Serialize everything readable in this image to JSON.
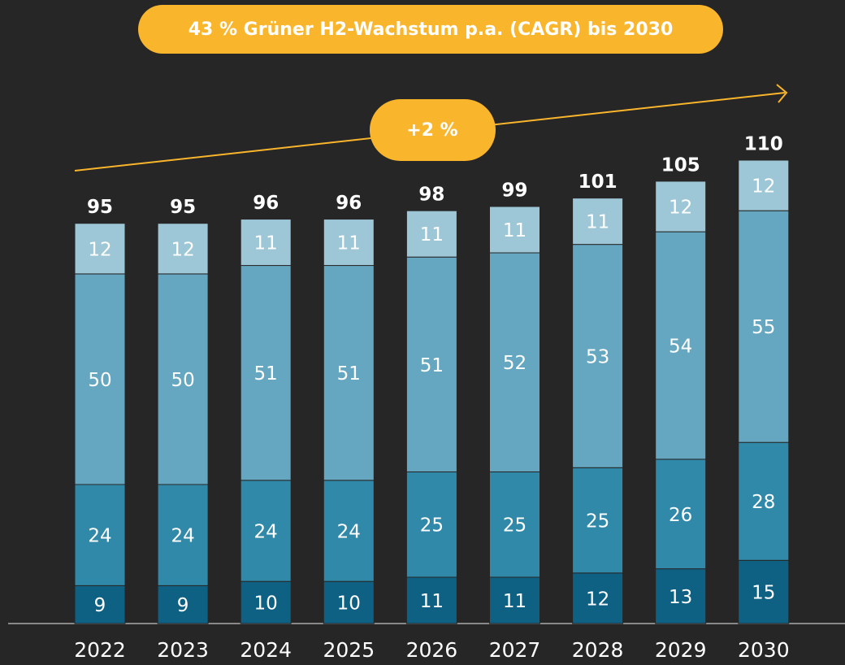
{
  "chart_data": {
    "type": "stacked_bar",
    "annotations": [
      "43 % Grüner H2-Wachstum p.a. (CAGR) bis 2030",
      "+2 %"
    ],
    "categories": [
      "2022",
      "2023",
      "2024",
      "2025",
      "2026",
      "2027",
      "2028",
      "2029",
      "2030"
    ],
    "series": [
      {
        "color": "#0f6184",
        "values": [
          9,
          9,
          10,
          10,
          11,
          11,
          12,
          13,
          15
        ]
      },
      {
        "color": "#3189a9",
        "values": [
          24,
          24,
          24,
          24,
          25,
          25,
          25,
          26,
          28
        ]
      },
      {
        "color": "#65a7c1",
        "values": [
          50,
          50,
          51,
          51,
          51,
          52,
          53,
          54,
          55
        ]
      },
      {
        "color": "#9dc6d6",
        "values": [
          12,
          12,
          11,
          11,
          11,
          11,
          11,
          12,
          12
        ]
      }
    ],
    "totals": [
      95,
      95,
      96,
      96,
      98,
      99,
      101,
      105,
      110
    ],
    "ylim": [
      0,
      110
    ]
  }
}
